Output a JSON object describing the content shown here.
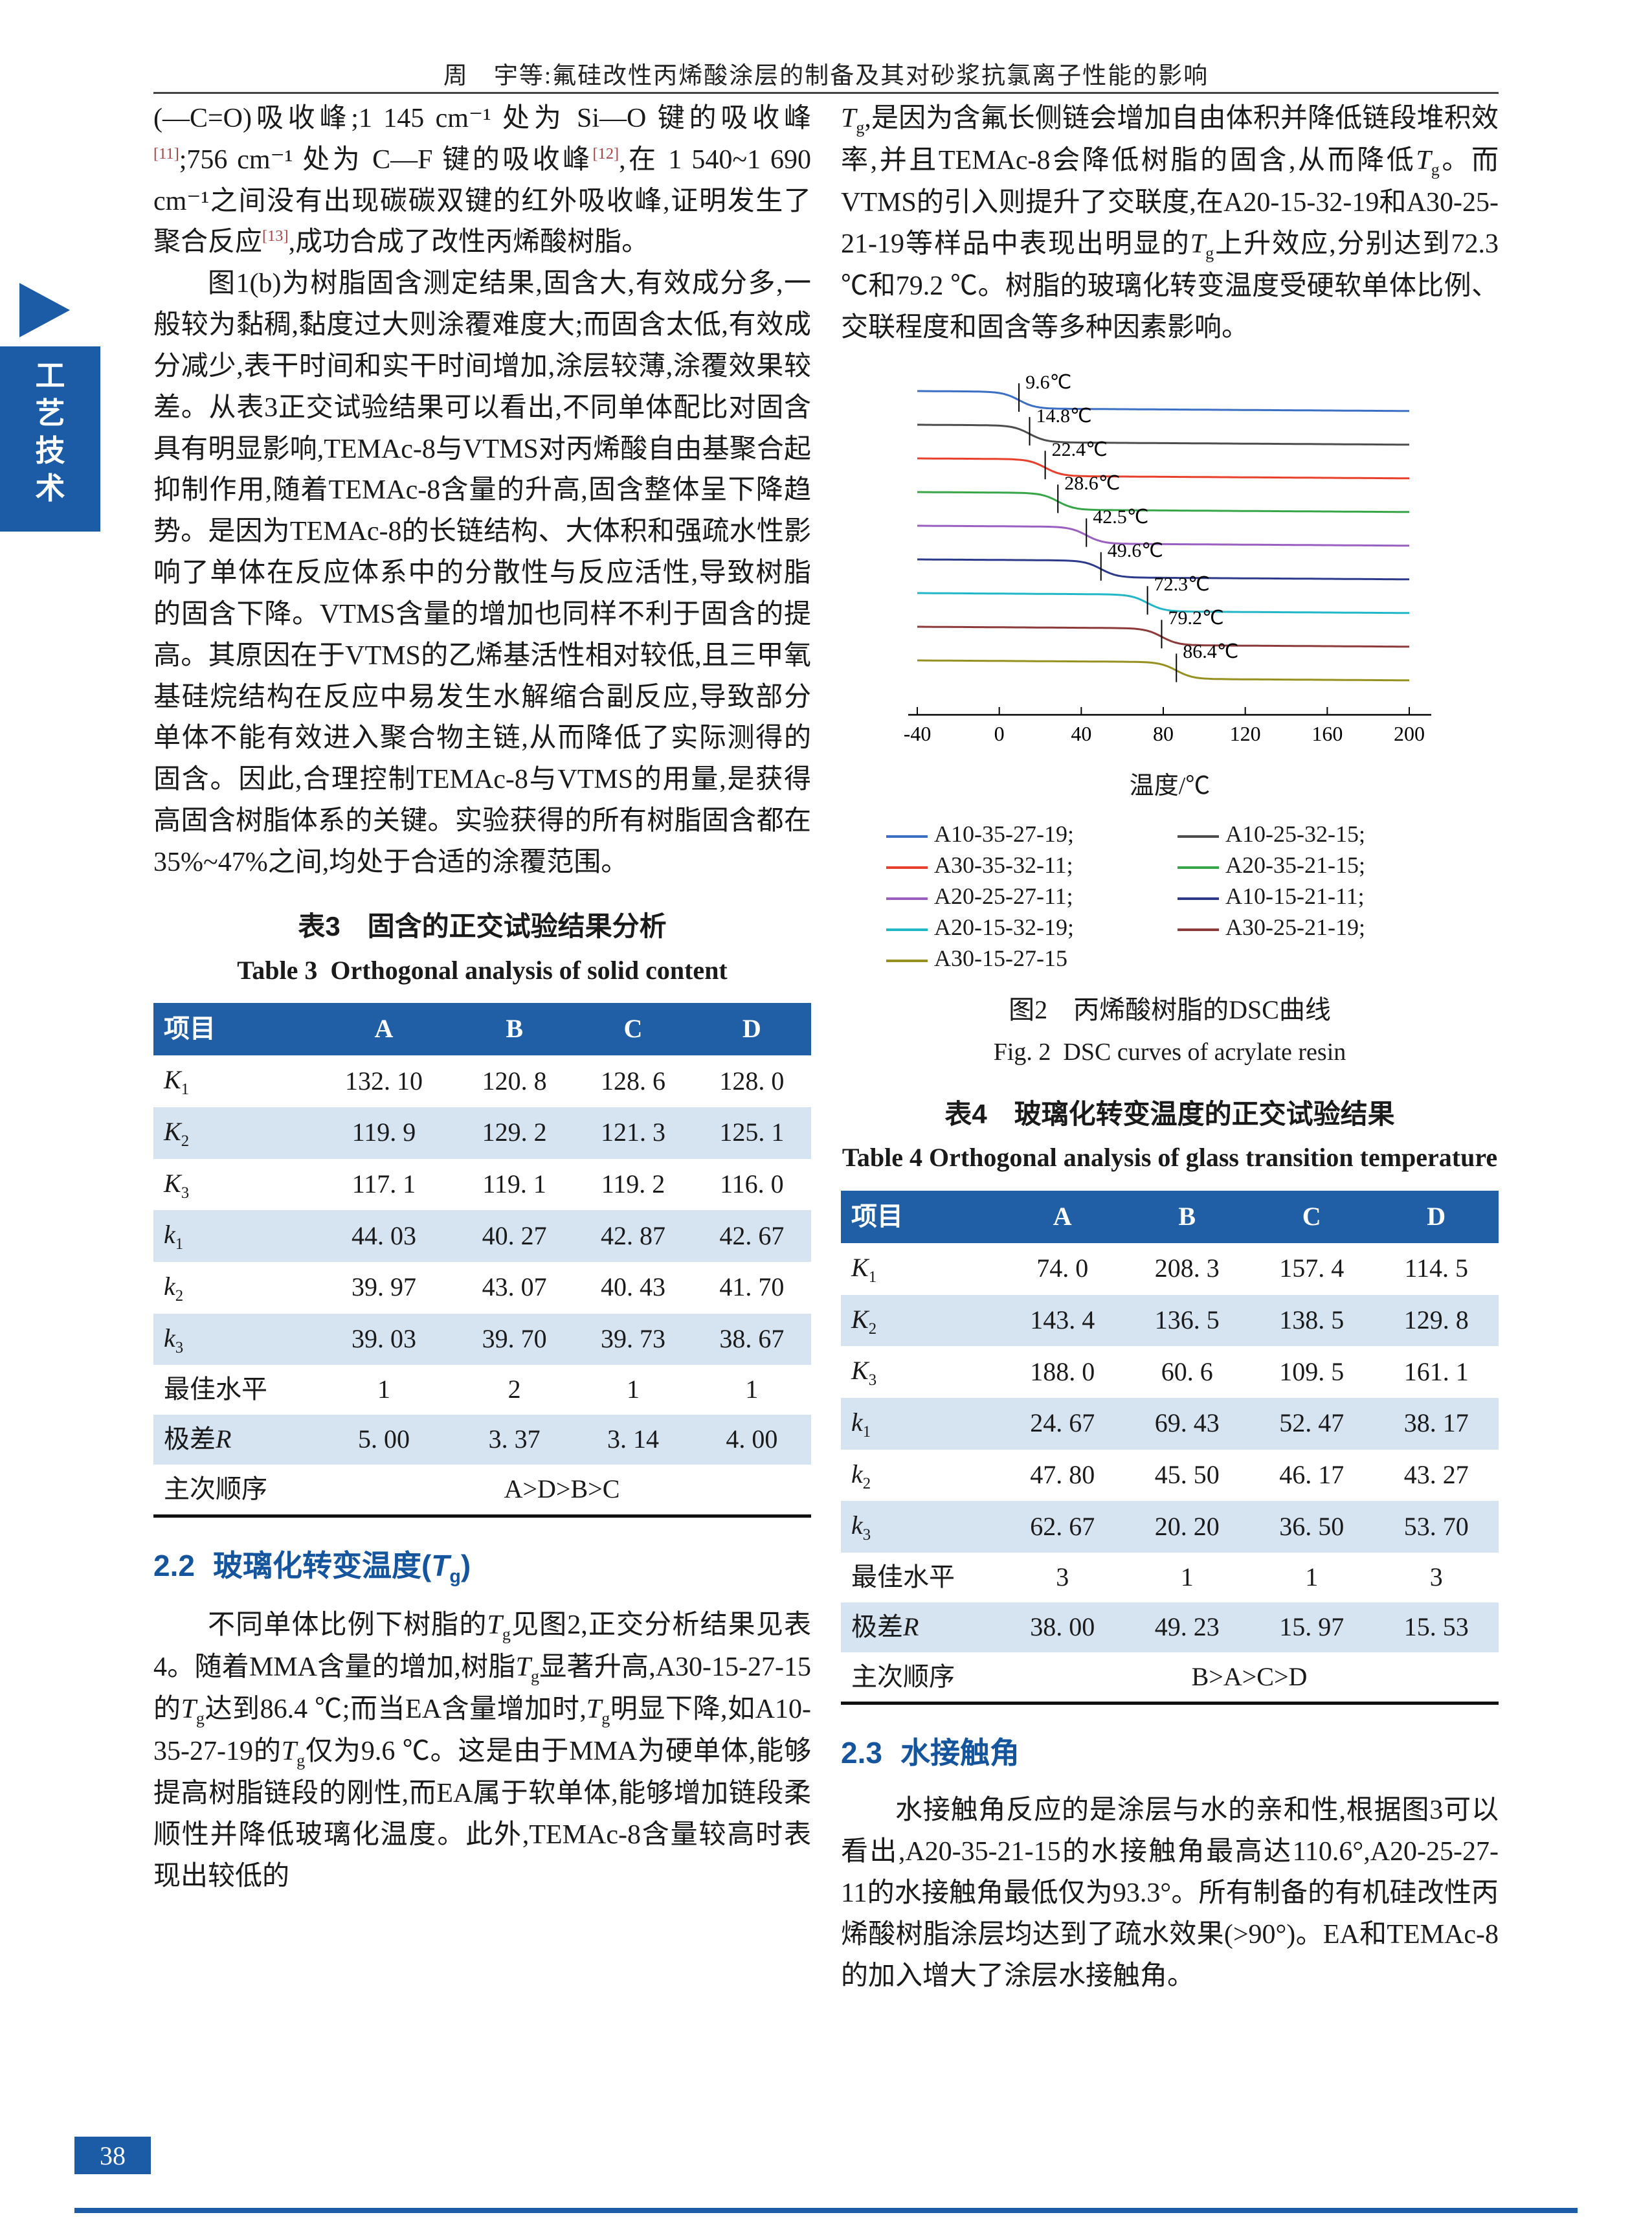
{
  "page": {
    "header": "周　宇等:氟硅改性丙烯酸涂层的制备及其对砂浆抗氯离子性能的影响",
    "page_number": "38",
    "sidebar_chars": [
      "工",
      "艺",
      "技",
      "术"
    ],
    "accent_color": "#1c5ba5"
  },
  "left_column": {
    "p1": "(—C=O)吸收峰;1 145 cm⁻¹ 处为 Si—O 键的吸收峰[11];756 cm⁻¹ 处为 C—F 键的吸收峰[12],在 1 540~1 690 cm⁻¹之间没有出现碳碳双键的红外吸收峰,证明发生了聚合反应[13],成功合成了改性丙烯酸树脂。",
    "p2": "图1(b)为树脂固含测定结果,固含大,有效成分多,一般较为黏稠,黏度过大则涂覆难度大;而固含太低,有效成分减少,表干时间和实干时间增加,涂层较薄,涂覆效果较差。从表3正交试验结果可以看出,不同单体配比对固含具有明显影响,TEMAc-8与VTMS对丙烯酸自由基聚合起抑制作用,随着TEMAc-8含量的升高,固含整体呈下降趋势。是因为TEMAc-8的长链结构、大体积和强疏水性影响了单体在反应体系中的分散性与反应活性,导致树脂的固含下降。VTMS含量的增加也同样不利于固含的提高。其原因在于VTMS的乙烯基活性相对较低,且三甲氧基硅烷结构在反应中易发生水解缩合副反应,导致部分单体不能有效进入聚合物主链,从而降低了实际测得的固含。因此,合理控制TEMAc-8与VTMS的用量,是获得高固含树脂体系的关键。实验获得的所有树脂固含都在35%~47%之间,均处于合适的涂覆范围。",
    "p3": "不同单体比例下树脂的{Tg}见图2,正交分析结果见表4。随着MMA含量的增加,树脂{Tg}显著升高,A30-15-27-15的{Tg}达到86.4 ℃;而当EA含量增加时,{Tg}明显下降,如A10-35-27-19的{Tg}仅为9.6 ℃。这是由于MMA为硬单体,能够提高树脂链段的刚性,而EA属于软单体,能够增加链段柔顺性并降低玻璃化温度。此外,TEMAc-8含量较高时表现出较低的"
  },
  "right_column": {
    "p1": "{Tg},是因为含氟长侧链会增加自由体积并降低链段堆积效率,并且TEMAc-8会降低树脂的固含,从而降低{Tg}。而VTMS的引入则提升了交联度,在A20-15-32-19和A30-25-21-19等样品中表现出明显的{Tg}上升效应,分别达到72.3 ℃和79.2 ℃。树脂的玻璃化转变温度受硬软单体比例、交联程度和固含等多种因素影响。",
    "p2": "水接触角反应的是涂层与水的亲和性,根据图3可以看出,A20-35-21-15的水接触角最高达110.6°,A20-25-27-11的水接触角最低仅为93.3°。所有制备的有机硅改性丙烯酸树脂涂层均达到了疏水效果(>90°)。EA和TEMAc-8的加入增大了涂层水接触角。"
  },
  "sections": {
    "s22": {
      "number": "2.2",
      "title": "玻璃化转变温度({Tg})"
    },
    "s23": {
      "number": "2.3",
      "title": "水接触角"
    }
  },
  "table3": {
    "title_cn": "表3　固含的正交试验结果分析",
    "title_en": "Table 3  Orthogonal analysis of solid content",
    "headers": [
      "项目",
      "A",
      "B",
      "C",
      "D"
    ],
    "rows": [
      {
        "label": "K1",
        "values": [
          "132. 10",
          "120. 8",
          "128. 6",
          "128. 0"
        ]
      },
      {
        "label": "K2",
        "values": [
          "119. 9",
          "129. 2",
          "121. 3",
          "125. 1"
        ]
      },
      {
        "label": "K3",
        "values": [
          "117. 1",
          "119. 1",
          "119. 2",
          "116. 0"
        ]
      },
      {
        "label": "k1",
        "values": [
          "44. 03",
          "40. 27",
          "42. 87",
          "42. 67"
        ]
      },
      {
        "label": "k2",
        "values": [
          "39. 97",
          "43. 07",
          "40. 43",
          "41. 70"
        ]
      },
      {
        "label": "k3",
        "values": [
          "39. 03",
          "39. 70",
          "39. 73",
          "38. 67"
        ]
      },
      {
        "label": "最佳水平",
        "values": [
          "1",
          "2",
          "1",
          "1"
        ]
      },
      {
        "label": "极差R",
        "values": [
          "5. 00",
          "3. 37",
          "3. 14",
          "4. 00"
        ]
      },
      {
        "label": "主次顺序",
        "span_value": "A>D>B>C"
      }
    ]
  },
  "table4": {
    "title_cn": "表4　玻璃化转变温度的正交试验结果",
    "title_en": "Table 4 Orthogonal analysis of glass transition temperature",
    "headers": [
      "项目",
      "A",
      "B",
      "C",
      "D"
    ],
    "rows": [
      {
        "label": "K1",
        "values": [
          "74. 0",
          "208. 3",
          "157. 4",
          "114. 5"
        ]
      },
      {
        "label": "K2",
        "values": [
          "143. 4",
          "136. 5",
          "138. 5",
          "129. 8"
        ]
      },
      {
        "label": "K3",
        "values": [
          "188. 0",
          "60. 6",
          "109. 5",
          "161. 1"
        ]
      },
      {
        "label": "k1",
        "values": [
          "24. 67",
          "69. 43",
          "52. 47",
          "38. 17"
        ]
      },
      {
        "label": "k2",
        "values": [
          "47. 80",
          "45. 50",
          "46. 17",
          "43. 27"
        ]
      },
      {
        "label": "k3",
        "values": [
          "62. 67",
          "20. 20",
          "36. 50",
          "53. 70"
        ]
      },
      {
        "label": "最佳水平",
        "values": [
          "3",
          "1",
          "1",
          "3"
        ]
      },
      {
        "label": "极差R",
        "values": [
          "38. 00",
          "49. 23",
          "15. 97",
          "15. 53"
        ]
      },
      {
        "label": "主次顺序",
        "span_value": "B>A>C>D"
      }
    ]
  },
  "figure2": {
    "caption_cn": "图2　丙烯酸树脂的DSC曲线",
    "caption_en": "Fig. 2  DSC curves of acrylate resin"
  },
  "chart_data": {
    "type": "line",
    "title": "DSC curves of acrylate resin",
    "xlabel": "温度/℃",
    "x_range": [
      -40,
      200
    ],
    "x_ticks": [
      -40,
      0,
      40,
      80,
      120,
      160,
      200
    ],
    "grid": false,
    "legend_position": "below",
    "series": [
      {
        "name": "A10-35-27-19",
        "tg": 9.6,
        "color": "#3a6fc4"
      },
      {
        "name": "A10-25-32-15",
        "tg": 14.8,
        "color": "#4d4d4d"
      },
      {
        "name": "A30-35-32-11",
        "tg": 22.4,
        "color": "#e8402a"
      },
      {
        "name": "A20-35-21-15",
        "tg": 28.6,
        "color": "#37a648"
      },
      {
        "name": "A20-25-27-11",
        "tg": 42.5,
        "color": "#9a5fc0"
      },
      {
        "name": "A10-15-21-11",
        "tg": 49.6,
        "color": "#2d3a8c"
      },
      {
        "name": "A20-15-32-19",
        "tg": 72.3,
        "color": "#22b7c8"
      },
      {
        "name": "A30-25-21-19",
        "tg": 79.2,
        "color": "#8c3a3a"
      },
      {
        "name": "A30-15-27-15",
        "tg": 86.4,
        "color": "#95901f"
      }
    ],
    "annotations": [
      "9.6℃",
      "14.8℃",
      "22.4℃",
      "28.6℃",
      "42.5℃",
      "49.6℃",
      "72.3℃",
      "79.2℃",
      "86.4℃"
    ]
  }
}
